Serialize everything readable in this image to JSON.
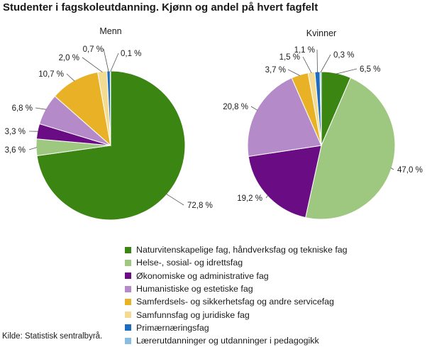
{
  "title": "Studenter i fagskoleutdanning. Kjønn og andel på hvert fagfelt",
  "source": "Kilde: Statistisk sentralbyrå.",
  "chart_data": {
    "type": "pie",
    "categories": [
      "Naturvitenskapelige fag, håndverksfag og tekniske fag",
      "Helse-, sosial- og idrettsfag",
      "Økonomiske og administrative fag",
      "Humanistiske og estetiske fag",
      "Samferdsels- og sikkerhetsfag og andre servicefag",
      "Samfunnsfag og juridiske fag",
      "Primærnæringsfag",
      "Lærerutdanninger og utdanninger i pedagogikk"
    ],
    "colors": [
      "#3b8512",
      "#9ec880",
      "#6a0c84",
      "#b48ac8",
      "#e9b126",
      "#f3dc92",
      "#1c6dbf",
      "#88bde1"
    ],
    "series": [
      {
        "name": "Menn",
        "values": [
          72.8,
          3.6,
          3.3,
          6.8,
          10.7,
          2.0,
          0.7,
          0.1
        ],
        "labels": [
          "72,8  %",
          "3,6  %",
          "3,3  %",
          "6,8  %",
          "10,7  %",
          "2,0  %",
          "0,7  %",
          "0,1  %"
        ]
      },
      {
        "name": "Kvinner",
        "values": [
          6.5,
          47.0,
          19.2,
          20.8,
          3.7,
          1.5,
          1.1,
          0.3
        ],
        "labels": [
          "6,5  %",
          "47,0  %",
          "19,2  %",
          "20,8  %",
          "3,7  %",
          "1,5  %",
          "1,1  %",
          "0,3  %"
        ]
      }
    ]
  }
}
